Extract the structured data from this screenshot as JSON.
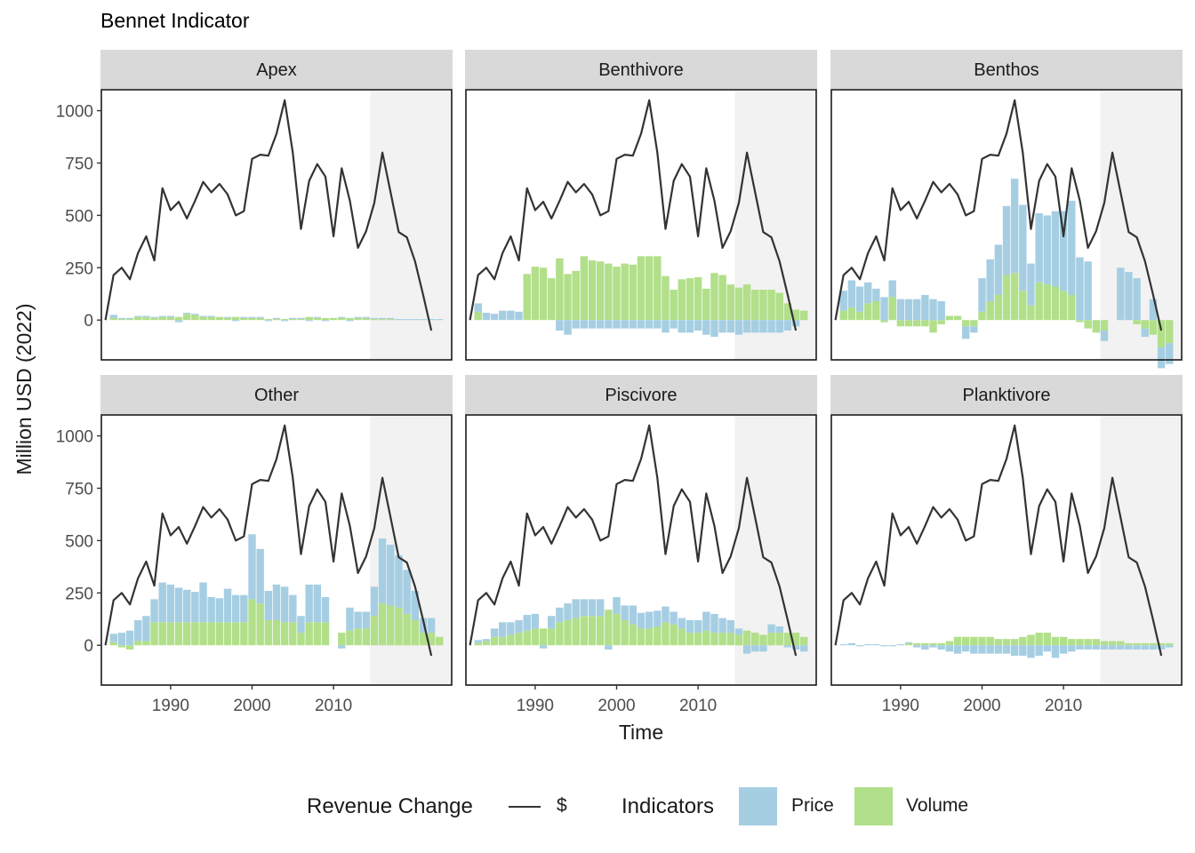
{
  "chart_data": {
    "type": "bar",
    "title": "Bennet Indicator",
    "xlabel": "Time",
    "ylabel": "Million USD (2022)",
    "xlim": [
      1982,
      2024
    ],
    "ylim": [
      -190,
      1100
    ],
    "x_ticks": [
      1990,
      2000,
      2010
    ],
    "y_ticks": [
      0,
      250,
      500,
      750,
      1000
    ],
    "shaded_region": [
      2015,
      2024
    ],
    "grid": false,
    "legend_position": "bottom",
    "legend": {
      "line_title": "Revenue Change",
      "line_entry": "$",
      "fill_title": "Indicators",
      "fill_entries": [
        "Price",
        "Volume"
      ]
    },
    "colors": {
      "price": "#a6cee3",
      "volume": "#b2df8a",
      "line": "#333333",
      "shade": "#f2f2f2",
      "strip": "#d9d9d9"
    },
    "years": [
      1982,
      1983,
      1984,
      1985,
      1986,
      1987,
      1988,
      1989,
      1990,
      1991,
      1992,
      1993,
      1994,
      1995,
      1996,
      1997,
      1998,
      1999,
      2000,
      2001,
      2002,
      2003,
      2004,
      2005,
      2006,
      2007,
      2008,
      2009,
      2010,
      2011,
      2012,
      2013,
      2014,
      2015,
      2016,
      2017,
      2018,
      2019,
      2020,
      2021,
      2022,
      2023
    ],
    "revenue_change": [
      0,
      215,
      250,
      195,
      320,
      400,
      285,
      630,
      525,
      565,
      485,
      570,
      660,
      610,
      650,
      600,
      500,
      520,
      770,
      790,
      785,
      890,
      1050,
      800,
      435,
      665,
      745,
      685,
      400,
      725,
      570,
      345,
      425,
      560,
      800,
      610,
      420,
      395,
      280,
      120,
      -50,
      null
    ],
    "panels": [
      {
        "name": "Apex",
        "price": [
          0,
          15,
          5,
          5,
          5,
          5,
          5,
          5,
          5,
          -10,
          5,
          5,
          5,
          5,
          0,
          5,
          -5,
          5,
          5,
          5,
          -5,
          5,
          -5,
          5,
          5,
          -5,
          5,
          -5,
          0,
          5,
          -5,
          5,
          5,
          5,
          5,
          5,
          5,
          5,
          5,
          5,
          5,
          5
        ],
        "volume": [
          0,
          10,
          5,
          5,
          15,
          15,
          10,
          15,
          15,
          15,
          30,
          25,
          15,
          15,
          15,
          10,
          15,
          10,
          10,
          10,
          5,
          5,
          5,
          5,
          5,
          15,
          10,
          10,
          10,
          10,
          10,
          10,
          10,
          5,
          5,
          5,
          0,
          0,
          0,
          0,
          0,
          0
        ]
      },
      {
        "name": "Benthivore",
        "price": [
          0,
          0,
          0,
          0,
          0,
          0,
          0,
          0,
          0,
          0,
          0,
          -50,
          -70,
          -40,
          -40,
          -40,
          -40,
          -40,
          -40,
          -40,
          -40,
          -40,
          -40,
          -40,
          -60,
          -40,
          -60,
          -60,
          -50,
          -70,
          -80,
          -60,
          -60,
          -70,
          -60,
          -60,
          -60,
          -60,
          -60,
          -50,
          -30,
          0
        ],
        "price_pos": [
          0,
          40,
          35,
          30,
          45,
          45,
          40,
          0,
          0,
          0,
          0,
          0,
          0,
          0,
          0,
          0,
          0,
          0,
          0,
          0,
          0,
          0,
          0,
          0,
          0,
          0,
          0,
          0,
          0,
          0,
          0,
          0,
          0,
          0,
          0,
          0,
          0,
          0,
          0,
          0,
          0,
          0
        ],
        "volume": [
          0,
          40,
          0,
          0,
          0,
          0,
          0,
          220,
          255,
          250,
          200,
          295,
          220,
          235,
          305,
          285,
          280,
          270,
          255,
          270,
          265,
          305,
          305,
          305,
          210,
          145,
          195,
          200,
          205,
          150,
          225,
          215,
          170,
          155,
          170,
          145,
          145,
          145,
          130,
          80,
          50,
          45
        ]
      },
      {
        "name": "Benthos",
        "price": [
          0,
          95,
          130,
          120,
          100,
          60,
          110,
          80,
          100,
          100,
          100,
          120,
          100,
          90,
          0,
          0,
          -60,
          -30,
          160,
          200,
          240,
          330,
          450,
          410,
          200,
          330,
          330,
          360,
          380,
          450,
          300,
          280,
          0,
          -50,
          0,
          250,
          230,
          200,
          -40,
          100,
          -100,
          -100
        ],
        "volume": [
          0,
          45,
          60,
          40,
          80,
          90,
          -10,
          110,
          -30,
          -30,
          -30,
          -30,
          -60,
          -20,
          20,
          20,
          -30,
          -30,
          40,
          90,
          120,
          215,
          225,
          140,
          70,
          180,
          170,
          160,
          140,
          120,
          -10,
          -40,
          -60,
          -50,
          0,
          0,
          0,
          -20,
          -40,
          -70,
          -130,
          -110
        ]
      },
      {
        "name": "Other",
        "price": [
          0,
          40,
          60,
          70,
          100,
          120,
          110,
          190,
          180,
          165,
          155,
          145,
          190,
          120,
          115,
          160,
          130,
          130,
          310,
          260,
          140,
          170,
          170,
          130,
          80,
          180,
          180,
          120,
          0,
          -15,
          110,
          80,
          80,
          140,
          310,
          290,
          250,
          210,
          140,
          70,
          70,
          0
        ],
        "volume": [
          0,
          15,
          -10,
          -20,
          20,
          20,
          110,
          110,
          110,
          110,
          110,
          110,
          110,
          110,
          110,
          110,
          110,
          110,
          220,
          200,
          120,
          120,
          110,
          110,
          60,
          110,
          110,
          110,
          0,
          60,
          70,
          80,
          80,
          140,
          200,
          190,
          180,
          150,
          120,
          60,
          60,
          40
        ]
      },
      {
        "name": "Piscivore",
        "price": [
          0,
          15,
          10,
          40,
          70,
          60,
          60,
          75,
          70,
          -15,
          60,
          70,
          80,
          90,
          80,
          80,
          80,
          -20,
          80,
          70,
          90,
          75,
          80,
          75,
          75,
          60,
          50,
          60,
          60,
          90,
          90,
          70,
          60,
          30,
          -40,
          -30,
          -30,
          40,
          30,
          -10,
          -20,
          -30
        ],
        "volume": [
          0,
          10,
          20,
          40,
          40,
          50,
          60,
          70,
          80,
          80,
          80,
          110,
          120,
          130,
          140,
          140,
          140,
          170,
          150,
          120,
          100,
          80,
          80,
          90,
          110,
          100,
          80,
          60,
          60,
          70,
          60,
          60,
          60,
          50,
          70,
          60,
          50,
          60,
          60,
          60,
          60,
          40
        ]
      },
      {
        "name": "Planktivore",
        "price": [
          0,
          5,
          10,
          -5,
          5,
          5,
          -5,
          -5,
          5,
          5,
          -10,
          -20,
          -10,
          -20,
          -30,
          -40,
          -30,
          -40,
          -40,
          -40,
          -40,
          -40,
          -50,
          -50,
          -60,
          -50,
          -30,
          -60,
          -40,
          -30,
          -20,
          -20,
          -20,
          -20,
          -20,
          -20,
          -20,
          -20,
          -20,
          -20,
          -20,
          -10
        ],
        "volume": [
          0,
          0,
          0,
          0,
          0,
          0,
          0,
          0,
          0,
          10,
          10,
          10,
          10,
          10,
          20,
          40,
          40,
          40,
          40,
          40,
          30,
          30,
          30,
          40,
          50,
          60,
          60,
          40,
          40,
          30,
          30,
          30,
          30,
          20,
          20,
          20,
          10,
          10,
          10,
          10,
          10,
          10
        ]
      }
    ]
  }
}
